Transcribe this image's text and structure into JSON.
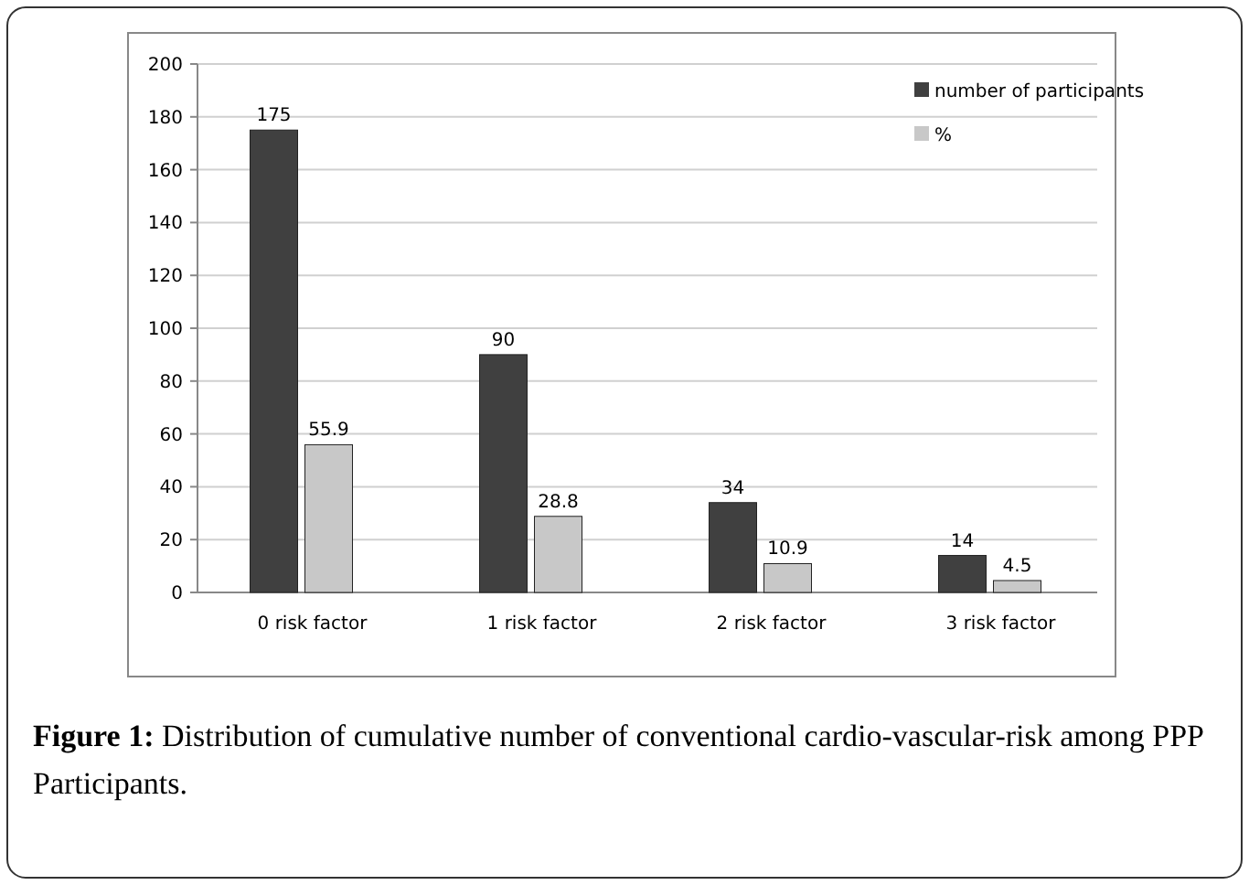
{
  "chart_data": {
    "type": "bar",
    "categories": [
      "0 risk factor",
      "1 risk factor",
      "2 risk factor",
      "3 risk factor"
    ],
    "series": [
      {
        "name": "number of participants",
        "color": "#404040",
        "values": [
          175,
          90,
          34,
          14
        ]
      },
      {
        "name": "%",
        "color": "#c8c8c8",
        "values": [
          55.9,
          28.8,
          10.9,
          4.5
        ]
      }
    ],
    "ylim": [
      0,
      200
    ],
    "yticks": [
      0,
      20,
      40,
      60,
      80,
      100,
      120,
      140,
      160,
      180,
      200
    ],
    "grid": "y",
    "legend": "top right",
    "data_labels": true,
    "annotations": [
      "Figure 1: Distribution of cumulative number of conventional cardio-vascular-risk among PPP Participants."
    ]
  }
}
